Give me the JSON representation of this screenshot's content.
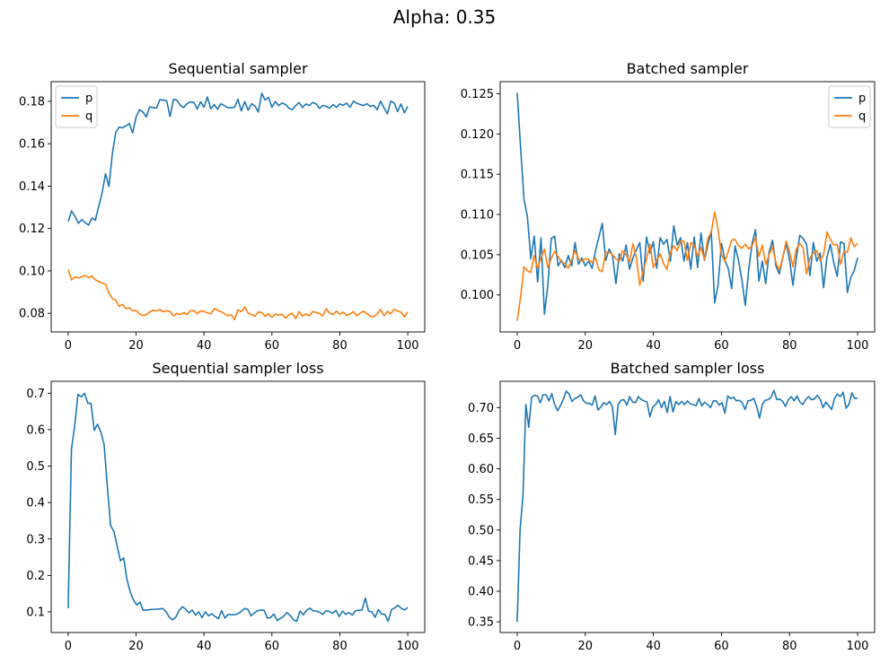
{
  "figure": {
    "title": "Alpha: 0.35",
    "colors": {
      "p": "#1f77b4",
      "q": "#ff7f0e"
    }
  },
  "chart_data": [
    {
      "type": "line",
      "title": "Sequential sampler",
      "xlabel": "",
      "ylabel": "",
      "xlim": [
        -5,
        105
      ],
      "ylim": [
        0.0712,
        0.1893
      ],
      "xticks": [
        0,
        20,
        40,
        60,
        80,
        100
      ],
      "yticks": [
        0.08,
        0.1,
        0.12,
        0.14,
        0.16,
        0.18
      ],
      "ytick_labels": [
        "0.08",
        "0.10",
        "0.12",
        "0.14",
        "0.16",
        "0.18"
      ],
      "legend": "top-left",
      "grid": false,
      "series": [
        {
          "name": "p",
          "color": "#1f77b4",
          "values": [
            0.1232,
            0.1283,
            0.1258,
            0.1225,
            0.1242,
            0.1228,
            0.1216,
            0.125,
            0.1239,
            0.1305,
            0.1368,
            0.1459,
            0.1398,
            0.1551,
            0.1653,
            0.1678,
            0.1675,
            0.1684,
            0.1695,
            0.1651,
            0.1726,
            0.1761,
            0.175,
            0.1726,
            0.1774,
            0.1771,
            0.1768,
            0.1808,
            0.1806,
            0.1803,
            0.1728,
            0.1809,
            0.1806,
            0.1781,
            0.1771,
            0.1789,
            0.1797,
            0.1795,
            0.1764,
            0.1798,
            0.1772,
            0.1821,
            0.1765,
            0.1785,
            0.1762,
            0.1789,
            0.178,
            0.177,
            0.1771,
            0.1772,
            0.181,
            0.1755,
            0.1799,
            0.1758,
            0.1789,
            0.1778,
            0.175,
            0.1838,
            0.1806,
            0.1819,
            0.1772,
            0.1799,
            0.178,
            0.1792,
            0.1785,
            0.1768,
            0.176,
            0.178,
            0.1794,
            0.1771,
            0.1788,
            0.178,
            0.1795,
            0.1788,
            0.1767,
            0.1781,
            0.1776,
            0.1768,
            0.1785,
            0.1772,
            0.1788,
            0.1781,
            0.1792,
            0.1772,
            0.1801,
            0.1791,
            0.1785,
            0.178,
            0.1789,
            0.1776,
            0.1781,
            0.176,
            0.1801,
            0.1769,
            0.1741,
            0.1801,
            0.1792,
            0.1752,
            0.1788,
            0.1746,
            0.1776
          ]
        },
        {
          "name": "q",
          "color": "#ff7f0e",
          "values": [
            0.1006,
            0.0958,
            0.0971,
            0.0966,
            0.0973,
            0.0978,
            0.0969,
            0.0976,
            0.0958,
            0.095,
            0.0942,
            0.0938,
            0.0895,
            0.087,
            0.0862,
            0.0833,
            0.0842,
            0.0822,
            0.0826,
            0.0812,
            0.0813,
            0.0797,
            0.079,
            0.0793,
            0.0806,
            0.0815,
            0.0811,
            0.0818,
            0.0807,
            0.0812,
            0.0809,
            0.0788,
            0.08,
            0.0794,
            0.0803,
            0.0794,
            0.0812,
            0.0813,
            0.0798,
            0.0811,
            0.0809,
            0.0802,
            0.0797,
            0.0822,
            0.0814,
            0.0808,
            0.0798,
            0.0789,
            0.0793,
            0.077,
            0.0817,
            0.0808,
            0.083,
            0.0801,
            0.0794,
            0.0786,
            0.0806,
            0.0804,
            0.0785,
            0.0798,
            0.0781,
            0.0797,
            0.0791,
            0.0796,
            0.0778,
            0.0794,
            0.08,
            0.0775,
            0.0808,
            0.0786,
            0.0798,
            0.0788,
            0.0808,
            0.0804,
            0.0799,
            0.0788,
            0.0821,
            0.08,
            0.0794,
            0.081,
            0.0796,
            0.0805,
            0.079,
            0.0796,
            0.0808,
            0.0789,
            0.0801,
            0.081,
            0.0798,
            0.0787,
            0.0784,
            0.0797,
            0.0818,
            0.0788,
            0.0809,
            0.0798,
            0.0819,
            0.081,
            0.0806,
            0.0783,
            0.0807
          ]
        }
      ]
    },
    {
      "type": "line",
      "title": "Batched sampler",
      "xlabel": "",
      "ylabel": "",
      "xlim": [
        -5,
        105
      ],
      "ylim": [
        0.0954,
        0.1265
      ],
      "xticks": [
        0,
        20,
        40,
        60,
        80,
        100
      ],
      "yticks": [
        0.1,
        0.105,
        0.11,
        0.115,
        0.12,
        0.125
      ],
      "ytick_labels": [
        "0.100",
        "0.105",
        "0.110",
        "0.115",
        "0.120",
        "0.125"
      ],
      "legend": "top-right",
      "grid": false,
      "series": [
        {
          "name": "p",
          "color": "#1f77b4",
          "values": [
            0.1251,
            0.1183,
            0.1119,
            0.1097,
            0.1045,
            0.1073,
            0.1016,
            0.1071,
            0.0976,
            0.1012,
            0.107,
            0.1073,
            0.1036,
            0.1043,
            0.1034,
            0.1049,
            0.1036,
            0.1065,
            0.1038,
            0.1046,
            0.1036,
            0.1042,
            0.1033,
            0.1055,
            0.1072,
            0.1089,
            0.1043,
            0.1057,
            0.1049,
            0.1014,
            0.1051,
            0.1042,
            0.1062,
            0.1032,
            0.1046,
            0.1056,
            0.1065,
            0.1017,
            0.1072,
            0.1052,
            0.1066,
            0.1033,
            0.1071,
            0.1063,
            0.1069,
            0.1042,
            0.1086,
            0.1062,
            0.1071,
            0.1042,
            0.1065,
            0.1032,
            0.1072,
            0.1034,
            0.1077,
            0.1043,
            0.1062,
            0.1079,
            0.099,
            0.1012,
            0.1064,
            0.1043,
            0.1033,
            0.1008,
            0.1061,
            0.1043,
            0.1019,
            0.0987,
            0.1031,
            0.1064,
            0.1081,
            0.1017,
            0.1042,
            0.1014,
            0.1053,
            0.1068,
            0.1036,
            0.1026,
            0.1046,
            0.1064,
            0.1044,
            0.1012,
            0.1046,
            0.1074,
            0.107,
            0.1063,
            0.1024,
            0.1065,
            0.1042,
            0.1052,
            0.1009,
            0.1047,
            0.1063,
            0.104,
            0.1023,
            0.1066,
            0.1064,
            0.1003,
            0.1022,
            0.103,
            0.1046
          ]
        },
        {
          "name": "q",
          "color": "#ff7f0e",
          "values": [
            0.0968,
            0.0997,
            0.1035,
            0.103,
            0.1028,
            0.1049,
            0.1033,
            0.1046,
            0.1057,
            0.1034,
            0.1045,
            0.1054,
            0.1048,
            0.1041,
            0.1039,
            0.1033,
            0.1043,
            0.1055,
            0.1045,
            0.1042,
            0.1045,
            0.1044,
            0.104,
            0.1046,
            0.1031,
            0.1029,
            0.1053,
            0.1053,
            0.105,
            0.1045,
            0.1042,
            0.1055,
            0.105,
            0.1041,
            0.1064,
            0.1046,
            0.1012,
            0.103,
            0.1044,
            0.1063,
            0.1034,
            0.1043,
            0.1051,
            0.1039,
            0.1032,
            0.1053,
            0.1061,
            0.1055,
            0.1067,
            0.1067,
            0.1043,
            0.1065,
            0.1062,
            0.1048,
            0.1059,
            0.1044,
            0.107,
            0.1078,
            0.1103,
            0.1081,
            0.105,
            0.1042,
            0.1054,
            0.1068,
            0.1069,
            0.1061,
            0.1058,
            0.1063,
            0.1057,
            0.1061,
            0.1071,
            0.1048,
            0.1062,
            0.1038,
            0.105,
            0.106,
            0.104,
            0.1031,
            0.1046,
            0.1067,
            0.1054,
            0.1035,
            0.1057,
            0.1064,
            0.1058,
            0.1026,
            0.1046,
            0.1052,
            0.1055,
            0.1043,
            0.105,
            0.1078,
            0.1069,
            0.1062,
            0.1063,
            0.1038,
            0.1054,
            0.1053,
            0.1071,
            0.106,
            0.1064
          ]
        }
      ]
    },
    {
      "type": "line",
      "title": "Sequential sampler loss",
      "xlabel": "",
      "ylabel": "",
      "xlim": [
        -5,
        105
      ],
      "ylim": [
        0.0433,
        0.7328
      ],
      "xticks": [
        0,
        20,
        40,
        60,
        80,
        100
      ],
      "yticks": [
        0.1,
        0.2,
        0.3,
        0.4,
        0.5,
        0.6,
        0.7
      ],
      "ytick_labels": [
        "0.1",
        "0.2",
        "0.3",
        "0.4",
        "0.5",
        "0.6",
        "0.7"
      ],
      "legend": "",
      "grid": false,
      "series": [
        {
          "name": "",
          "color": "#1f77b4",
          "values": [
            0.11,
            0.546,
            0.61,
            0.697,
            0.69,
            0.7,
            0.673,
            0.672,
            0.598,
            0.615,
            0.594,
            0.56,
            0.444,
            0.337,
            0.321,
            0.281,
            0.24,
            0.248,
            0.189,
            0.155,
            0.132,
            0.119,
            0.127,
            0.104,
            0.105,
            0.106,
            0.107,
            0.107,
            0.108,
            0.109,
            0.1,
            0.085,
            0.078,
            0.086,
            0.104,
            0.114,
            0.107,
            0.097,
            0.105,
            0.091,
            0.1,
            0.084,
            0.1,
            0.089,
            0.095,
            0.087,
            0.081,
            0.103,
            0.083,
            0.093,
            0.092,
            0.092,
            0.095,
            0.101,
            0.109,
            0.107,
            0.089,
            0.097,
            0.103,
            0.105,
            0.104,
            0.083,
            0.084,
            0.094,
            0.076,
            0.082,
            0.088,
            0.098,
            0.09,
            0.078,
            0.074,
            0.102,
            0.092,
            0.104,
            0.11,
            0.103,
            0.102,
            0.099,
            0.093,
            0.103,
            0.101,
            0.096,
            0.104,
            0.087,
            0.102,
            0.093,
            0.098,
            0.091,
            0.103,
            0.104,
            0.105,
            0.138,
            0.102,
            0.1,
            0.085,
            0.106,
            0.094,
            0.093,
            0.074,
            0.106,
            0.111,
            0.118,
            0.11,
            0.105,
            0.112
          ]
        }
      ]
    },
    {
      "type": "line",
      "title": "Batched sampler loss",
      "xlabel": "",
      "ylabel": "",
      "xlim": [
        -5,
        105
      ],
      "ylim": [
        0.3326,
        0.743
      ],
      "xticks": [
        0,
        20,
        40,
        60,
        80,
        100
      ],
      "yticks": [
        0.35,
        0.4,
        0.45,
        0.5,
        0.55,
        0.6,
        0.65,
        0.7
      ],
      "ytick_labels": [
        "0.35",
        "0.40",
        "0.45",
        "0.50",
        "0.55",
        "0.60",
        "0.65",
        "0.70"
      ],
      "legend": "",
      "grid": false,
      "series": [
        {
          "name": "",
          "color": "#1f77b4",
          "values": [
            0.35,
            0.501,
            0.555,
            0.705,
            0.668,
            0.717,
            0.72,
            0.719,
            0.708,
            0.721,
            0.721,
            0.711,
            0.723,
            0.705,
            0.695,
            0.703,
            0.714,
            0.727,
            0.722,
            0.71,
            0.715,
            0.717,
            0.721,
            0.711,
            0.707,
            0.707,
            0.704,
            0.719,
            0.696,
            0.701,
            0.708,
            0.705,
            0.71,
            0.702,
            0.656,
            0.705,
            0.712,
            0.713,
            0.704,
            0.718,
            0.709,
            0.708,
            0.718,
            0.713,
            0.711,
            0.709,
            0.685,
            0.701,
            0.705,
            0.713,
            0.7,
            0.71,
            0.692,
            0.718,
            0.693,
            0.71,
            0.705,
            0.71,
            0.705,
            0.711,
            0.706,
            0.705,
            0.703,
            0.715,
            0.703,
            0.709,
            0.705,
            0.7,
            0.711,
            0.711,
            0.704,
            0.708,
            0.691,
            0.719,
            0.715,
            0.717,
            0.711,
            0.712,
            0.708,
            0.697,
            0.711,
            0.712,
            0.715,
            0.702,
            0.683,
            0.706,
            0.712,
            0.713,
            0.717,
            0.728,
            0.713,
            0.714,
            0.71,
            0.702,
            0.713,
            0.718,
            0.711,
            0.719,
            0.709,
            0.705,
            0.713,
            0.718,
            0.713,
            0.714,
            0.72,
            0.714,
            0.7,
            0.709,
            0.703,
            0.697,
            0.715,
            0.722,
            0.718,
            0.725,
            0.699,
            0.705,
            0.724,
            0.715,
            0.715
          ]
        }
      ]
    }
  ]
}
